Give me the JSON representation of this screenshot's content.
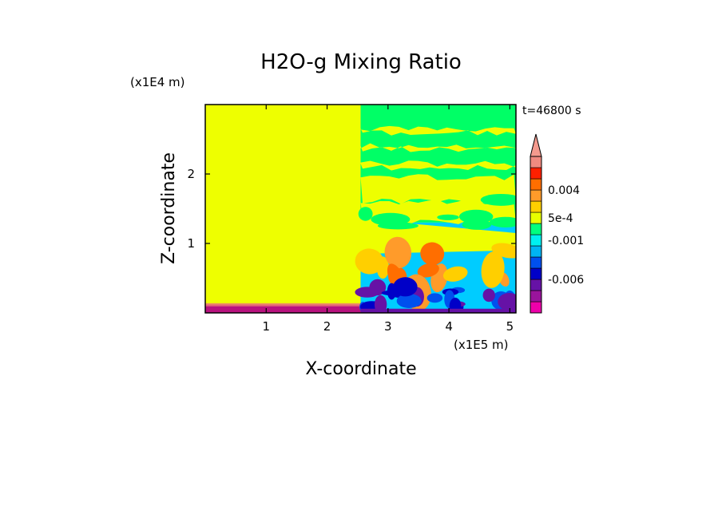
{
  "chart_data": {
    "type": "heatmap",
    "title": "H2O-g Mixing Ratio",
    "xlabel": "X-coordinate",
    "ylabel": "Z-coordinate",
    "x_unit": "(x1E5 m)",
    "y_unit": "(x1E4 m)",
    "time_label": "t=46800 s",
    "xlim": [
      0,
      5.1
    ],
    "ylim": [
      0,
      3.0
    ],
    "x_ticks": [
      1,
      2,
      3,
      4,
      5
    ],
    "y_ticks": [
      1,
      2
    ],
    "x_tick_labels": [
      "1",
      "2",
      "3",
      "4",
      "5"
    ],
    "y_tick_labels": [
      "1",
      "2"
    ],
    "colorbar": {
      "extend": "max",
      "extend_color": "#f49a8e",
      "colors": [
        "#ee00aa",
        "#9a149c",
        "#6612a6",
        "#0000c8",
        "#0050ee",
        "#00b4f2",
        "#00f0f0",
        "#00ff7f",
        "#e8ff00",
        "#ffcf00",
        "#ff9b2a",
        "#ff6e00",
        "#ff2000",
        "#f08a80"
      ],
      "labels": [
        {
          "text": "-0.006",
          "value": -0.006
        },
        {
          "text": "-0.001",
          "value": -0.001
        },
        {
          "text": "5e-4",
          "value": 0.0005
        },
        {
          "text": "0.004",
          "value": 0.004
        }
      ]
    },
    "regions": {
      "left_block": {
        "x": [
          0,
          2.55
        ],
        "z": [
          0.12,
          3.0
        ],
        "color": "#eeff00"
      },
      "surface_band": {
        "x": [
          0,
          2.55
        ],
        "z": [
          0,
          0.12
        ],
        "color": "#b8127e"
      },
      "upper_right": {
        "x": [
          2.55,
          5.1
        ],
        "z": [
          1.3,
          3.0
        ],
        "color": "#00ff66"
      },
      "lower_right": {
        "x": [
          2.55,
          5.1
        ],
        "z": [
          0,
          1.3
        ],
        "color": "#00ccff"
      }
    }
  }
}
